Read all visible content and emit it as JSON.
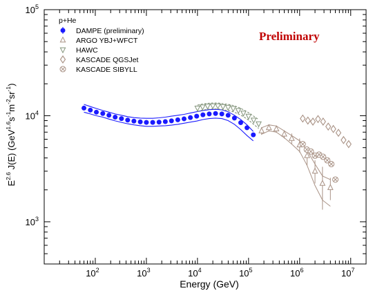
{
  "chart_data": {
    "type": "scatter",
    "title": "",
    "xlabel": "Energy (GeV)",
    "ylabel": "E^2.6 J(E) (GeV^1.6 s^-1 m^-2 sr^-1)",
    "ylabel_parts": {
      "a": "E",
      "a_sup": "2.6",
      "b": " J(E) (GeV",
      "b_sup": "1.6",
      "c": "s",
      "c_sup": "-1",
      "d": "m",
      "d_sup": "-2",
      "e": "sr",
      "e_sup": "-1",
      "f": ")"
    },
    "xscale": "log",
    "yscale": "log",
    "xlim": [
      10,
      20000000
    ],
    "ylim": [
      400,
      100000
    ],
    "grid": false,
    "annotation": "Preliminary",
    "legend_title": "p+He",
    "legend_position": "top-left",
    "x_ticks": [
      {
        "base": "10",
        "exp": "2",
        "value": 100
      },
      {
        "base": "10",
        "exp": "3",
        "value": 1000
      },
      {
        "base": "10",
        "exp": "4",
        "value": 10000
      },
      {
        "base": "10",
        "exp": "5",
        "value": 100000
      },
      {
        "base": "10",
        "exp": "6",
        "value": 1000000
      },
      {
        "base": "10",
        "exp": "7",
        "value": 10000000
      }
    ],
    "y_ticks": [
      {
        "base": "10",
        "exp": "3",
        "value": 1000
      },
      {
        "base": "10",
        "exp": "4",
        "value": 10000
      },
      {
        "base": "10",
        "exp": "5",
        "value": 100000
      }
    ],
    "series": [
      {
        "name": "DAMPE (preliminary)",
        "marker": "filled-circle",
        "color": "#1a1aff",
        "x": [
          60,
          80,
          105,
          140,
          185,
          245,
          325,
          430,
          570,
          760,
          1000,
          1330,
          1770,
          2350,
          3100,
          4120,
          5470,
          7270,
          9650,
          12800,
          17000,
          22600,
          30000,
          39800,
          52900,
          70200,
          93200,
          124000
        ],
        "y": [
          11800,
          11300,
          10800,
          10500,
          10100,
          9700,
          9400,
          9100,
          8900,
          8750,
          8650,
          8650,
          8700,
          8800,
          8950,
          9150,
          9350,
          9600,
          9900,
          10200,
          10400,
          10500,
          10400,
          10100,
          9500,
          8600,
          7700,
          6600
        ],
        "band_upper": [
          12800,
          12200,
          11700,
          11200,
          10800,
          10400,
          10100,
          9800,
          9600,
          9500,
          9450,
          9450,
          9550,
          9700,
          9900,
          10100,
          10300,
          10600,
          10900,
          11200,
          11400,
          11500,
          11350,
          10900,
          10100,
          9200,
          8200,
          7100
        ],
        "band_lower": [
          10800,
          10400,
          10000,
          9700,
          9300,
          8950,
          8650,
          8400,
          8200,
          8050,
          7950,
          7950,
          8000,
          8050,
          8150,
          8300,
          8500,
          8700,
          8900,
          9200,
          9400,
          9500,
          9400,
          9000,
          8300,
          7400,
          6500,
          5800
        ]
      },
      {
        "name": "ARGO YBJ+WFCT",
        "marker": "open-triangle-up",
        "color": "#a89184",
        "x": [
          180000,
          250000,
          350000,
          500000,
          700000,
          1000000,
          1400000,
          2000000,
          2800000,
          4000000
        ],
        "y": [
          7200,
          7700,
          7500,
          6700,
          6100,
          5300,
          4200,
          3000,
          2300,
          2100
        ],
        "err_low": [
          6600,
          7100,
          6900,
          6100,
          5400,
          4500,
          3400,
          2300,
          1300,
          1600
        ],
        "err_high": [
          7800,
          8300,
          8100,
          7300,
          6800,
          6100,
          5000,
          3800,
          3300,
          2600
        ],
        "band_upper": [
          7700,
          8200,
          8000,
          7200,
          6500,
          5800,
          4700,
          3500,
          2700,
          2500
        ],
        "band_lower": [
          6700,
          7200,
          7000,
          6200,
          5400,
          4600,
          3400,
          2200,
          1600,
          1400
        ]
      },
      {
        "name": "HAWC",
        "marker": "open-triangle-down",
        "color": "#82937a",
        "x": [
          10000,
          12600,
          15800,
          20000,
          25100,
          31600,
          39800,
          50100,
          63100,
          79400,
          100000,
          126000,
          158000
        ],
        "y": [
          11800,
          12100,
          12300,
          12400,
          12400,
          12200,
          12000,
          11700,
          11200,
          10600,
          9900,
          9100,
          8400
        ],
        "band_upper": [
          12600,
          12900,
          13100,
          13200,
          13200,
          13000,
          12800,
          12500,
          12000,
          11400,
          10700,
          9900,
          9200
        ],
        "band_lower": [
          11000,
          11300,
          11500,
          11600,
          11600,
          11400,
          11200,
          10900,
          10400,
          9800,
          9100,
          8300,
          7600
        ]
      },
      {
        "name": "KASCADE QGSJet",
        "marker": "open-diamond",
        "color": "#a89184",
        "x": [
          1150000,
          1450000,
          1820000,
          2290000,
          2880000,
          3630000,
          4570000,
          5750000,
          7240000,
          9120000
        ],
        "y": [
          9400,
          9000,
          8800,
          9300,
          8800,
          7900,
          7500,
          6900,
          5900,
          5400
        ]
      },
      {
        "name": "KASCADE SIBYLL",
        "marker": "open-x-circle",
        "color": "#a89184",
        "x": [
          1150000,
          1380000,
          1660000,
          2000000,
          2400000,
          2880000,
          3470000,
          4170000,
          5010000
        ],
        "y": [
          5400,
          4800,
          4600,
          4200,
          4300,
          4100,
          3800,
          3500,
          2500
        ]
      }
    ]
  }
}
